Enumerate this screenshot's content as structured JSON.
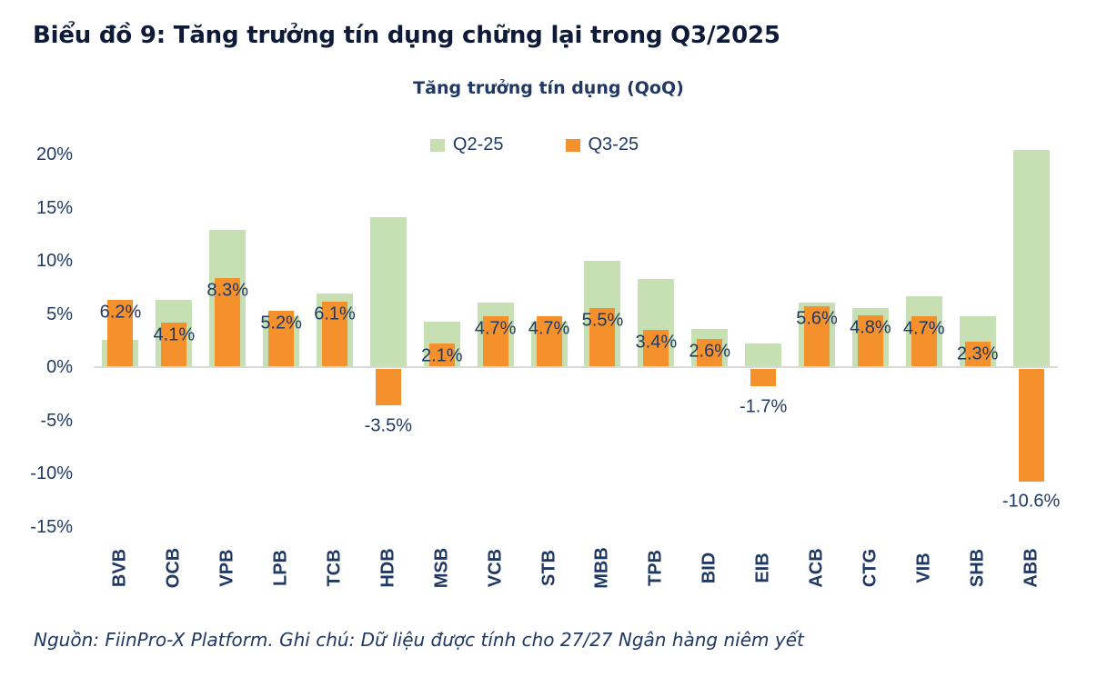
{
  "title": "Biểu đồ 9: Tăng trưởng tín dụng chững lại trong Q3/2025",
  "source_note": "Nguồn: FiinPro-X Platform. Ghi chú: Dữ liệu được tính cho 27/27 Ngân hàng niêm yết",
  "colors": {
    "q2_green": "#c6e0b4",
    "q3_orange": "#f5912d",
    "text_navy": "#1f3864",
    "title_navy": "#0e1b38",
    "axis_gray": "#d9d9d9"
  },
  "chart_data": {
    "type": "bar",
    "title": "Tăng trưởng tín dụng (QoQ)",
    "categories": [
      "BVB",
      "OCB",
      "VPB",
      "LPB",
      "TCB",
      "HDB",
      "MSB",
      "VCB",
      "STB",
      "MBB",
      "TPB",
      "BID",
      "EIB",
      "ACB",
      "CTG",
      "VIB",
      "SHB",
      "ABB"
    ],
    "series": [
      {
        "name": "Q2-25",
        "color": "#c6e0b4",
        "values": [
          2.5,
          6.2,
          12.8,
          4.7,
          6.8,
          14.0,
          4.2,
          6.0,
          4.2,
          9.9,
          8.2,
          3.5,
          2.1,
          6.0,
          5.5,
          6.6,
          4.7,
          20.3
        ]
      },
      {
        "name": "Q3-25",
        "color": "#f5912d",
        "values": [
          6.2,
          4.1,
          8.3,
          5.2,
          6.1,
          -3.5,
          2.1,
          4.7,
          4.7,
          5.5,
          3.4,
          2.6,
          -1.7,
          5.6,
          4.8,
          4.7,
          2.3,
          -10.6
        ],
        "labels": [
          "6.2%",
          "4.1%",
          "8.3%",
          "5.2%",
          "6.1%",
          "-3.5%",
          "2.1%",
          "4.7%",
          "4.7%",
          "5.5%",
          "3.4%",
          "2.6%",
          "-1.7%",
          "5.6%",
          "4.8%",
          "4.7%",
          "2.3%",
          "-10.6%"
        ]
      }
    ],
    "ylim": [
      -15,
      20
    ],
    "ytick_values": [
      20,
      15,
      10,
      5,
      0,
      -5,
      -10,
      -15
    ],
    "ytick_labels": [
      "20%",
      "15%",
      "10%",
      "5%",
      "0%",
      "-5%",
      "-10%",
      "-15%"
    ],
    "legend_position": "top",
    "grid": false,
    "data_labels_series": "Q3-25"
  }
}
